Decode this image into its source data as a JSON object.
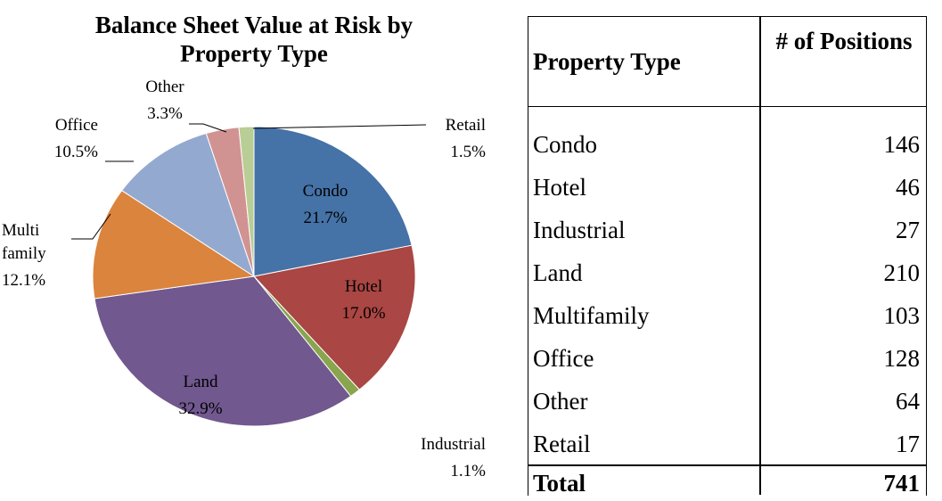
{
  "chart_data": {
    "type": "pie",
    "title": "Balance Sheet Value at Risk by Property Type",
    "categories": [
      "Condo",
      "Hotel",
      "Industrial",
      "Land",
      "Multi family",
      "Office",
      "Other",
      "Retail"
    ],
    "values": [
      21.7,
      17.0,
      1.1,
      32.9,
      12.1,
      10.5,
      3.3,
      1.5
    ],
    "value_labels": [
      "21.7%",
      "17.0%",
      "1.1%",
      "32.9%",
      "12.1%",
      "10.5%",
      "3.3%",
      "1.5%"
    ],
    "colors": [
      "#4572a7",
      "#aa4643",
      "#89a54e",
      "#71588f",
      "#db843d",
      "#93a9cf",
      "#d19392",
      "#b9cd96"
    ]
  },
  "table": {
    "header": [
      "Property Type",
      "# of Positions"
    ],
    "rows": [
      [
        "Condo",
        146
      ],
      [
        "Hotel",
        46
      ],
      [
        "Industrial",
        27
      ],
      [
        "Land",
        210
      ],
      [
        "Multifamily",
        103
      ],
      [
        "Office",
        128
      ],
      [
        "Other",
        64
      ],
      [
        "Retail",
        17
      ]
    ],
    "total": [
      "Total",
      741
    ]
  }
}
